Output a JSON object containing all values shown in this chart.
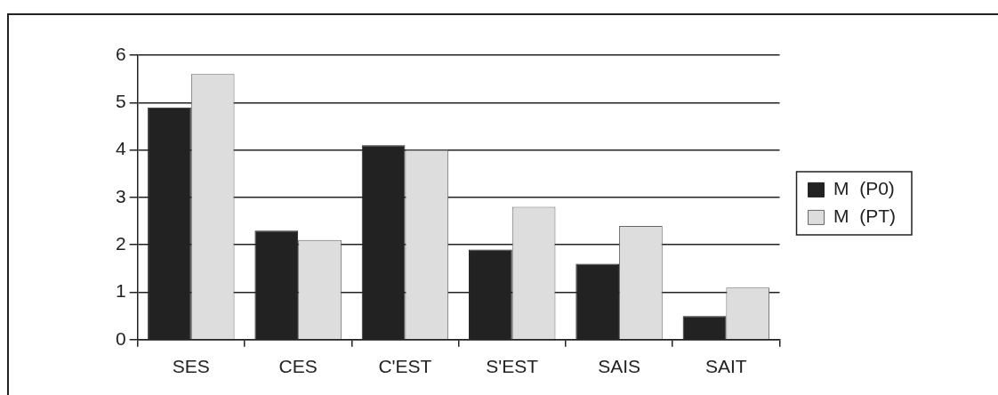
{
  "chart_data": {
    "type": "bar",
    "categories": [
      "SES",
      "CES",
      "C'EST",
      "S'EST",
      "SAIS",
      "SAIT"
    ],
    "series": [
      {
        "name": "M  (P0)",
        "color": "#222222",
        "values": [
          4.9,
          2.3,
          4.1,
          1.9,
          1.6,
          0.5
        ]
      },
      {
        "name": "M  (PT)",
        "color": "#dddddd",
        "values": [
          5.6,
          2.1,
          4.0,
          2.8,
          2.4,
          1.1
        ]
      }
    ],
    "ylim": [
      0,
      6
    ],
    "yticks": [
      0,
      1,
      2,
      3,
      4,
      5,
      6
    ],
    "grid": "y",
    "legend": "right"
  }
}
